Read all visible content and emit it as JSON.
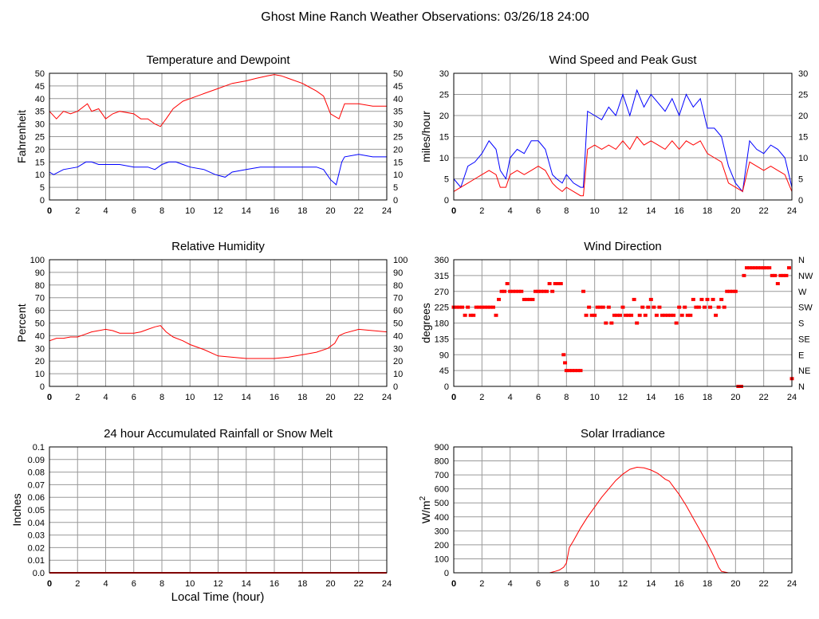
{
  "page_title": "Ghost Mine Ranch Weather Observations: 03/26/18 24:00",
  "colors": {
    "red": "#ff0000",
    "blue": "#0000ff",
    "grid": "#999999",
    "frame": "#000000"
  },
  "x_axis": {
    "xlabel": "Local Time (hour)",
    "ticks": [
      0,
      2,
      4,
      6,
      8,
      10,
      12,
      14,
      16,
      18,
      20,
      22,
      24
    ],
    "xlim": [
      0,
      24
    ]
  },
  "chart_data": [
    {
      "id": "temperature",
      "type": "line",
      "title": "Temperature and Dewpoint",
      "ylabel": "Fahrenheit",
      "ylim": [
        0,
        50
      ],
      "yticks": [
        "0",
        "5",
        "10",
        "15",
        "20",
        "25",
        "30",
        "35",
        "40",
        "45",
        "50"
      ],
      "right_ticks": [
        "0",
        "5",
        "10",
        "15",
        "20",
        "25",
        "30",
        "35",
        "40",
        "45",
        "50"
      ],
      "series": [
        {
          "color": "#ff0000",
          "x": [
            0,
            0.5,
            1,
            1.5,
            2,
            2.7,
            3,
            3.5,
            4,
            4.5,
            5,
            6,
            6.5,
            7,
            7.5,
            7.9,
            8.3,
            8.8,
            9.5,
            10,
            11,
            12,
            13,
            14,
            14.7,
            15.5,
            16,
            16.5,
            17,
            18,
            19,
            19.5,
            20,
            20.3,
            20.6,
            21,
            22,
            23,
            24
          ],
          "y": [
            35,
            32,
            35,
            34,
            35,
            38,
            35,
            36,
            32,
            34,
            35,
            34,
            32,
            32,
            30,
            29,
            32,
            36,
            39,
            40,
            42,
            44,
            46,
            47,
            48,
            49,
            49.5,
            49,
            48,
            46,
            43,
            41,
            34,
            33,
            32,
            38,
            38,
            37,
            37
          ]
        },
        {
          "color": "#0000ff",
          "x": [
            0,
            0.3,
            1,
            2,
            2.6,
            3,
            3.5,
            4,
            5,
            6,
            7,
            7.5,
            8,
            8.5,
            9,
            9.5,
            10,
            11,
            11.8,
            12.5,
            13,
            14,
            15,
            16,
            17,
            18,
            19,
            19.5,
            20,
            20.4,
            20.8,
            21,
            22,
            23,
            24
          ],
          "y": [
            11,
            10,
            12,
            13,
            15,
            15,
            14,
            14,
            14,
            13,
            13,
            12,
            14,
            15,
            15,
            14,
            13,
            12,
            10,
            9,
            11,
            12,
            13,
            13,
            13,
            13,
            13,
            12,
            8,
            6,
            15,
            17,
            18,
            17,
            17
          ]
        }
      ]
    },
    {
      "id": "wind",
      "type": "line",
      "title": "Wind Speed and Peak Gust",
      "ylabel": "miles/hour",
      "ylim": [
        0,
        30
      ],
      "yticks": [
        "0",
        "5",
        "10",
        "15",
        "20",
        "25",
        "30"
      ],
      "right_ticks": [
        "0",
        "5",
        "10",
        "15",
        "20",
        "25",
        "30"
      ],
      "series": [
        {
          "color": "#0000ff",
          "x": [
            0,
            0.5,
            1,
            1.5,
            2,
            2.5,
            3,
            3.3,
            3.7,
            4,
            4.5,
            5,
            5.5,
            6,
            6.5,
            7,
            7.3,
            7.7,
            8,
            8.5,
            9,
            9.2,
            9.5,
            10,
            10.5,
            11,
            11.5,
            12,
            12.5,
            13,
            13.5,
            14,
            14.5,
            15,
            15.5,
            16,
            16.5,
            17,
            17.5,
            18,
            18.5,
            19,
            19.5,
            20,
            20.5,
            21,
            21.5,
            22,
            22.5,
            23,
            23.5,
            24
          ],
          "y": [
            5,
            3,
            8,
            9,
            11,
            14,
            12,
            7,
            5,
            10,
            12,
            11,
            14,
            14,
            12,
            6,
            5,
            4,
            6,
            4,
            3,
            3,
            21,
            20,
            19,
            22,
            20,
            25,
            20,
            26,
            22,
            25,
            23,
            21,
            24,
            20,
            25,
            22,
            24,
            17,
            17,
            15,
            8,
            4,
            2,
            14,
            12,
            11,
            13,
            12,
            10,
            3
          ]
        },
        {
          "color": "#ff0000",
          "x": [
            0,
            0.5,
            1,
            1.5,
            2,
            2.5,
            3,
            3.3,
            3.7,
            4,
            4.5,
            5,
            5.5,
            6,
            6.5,
            7,
            7.3,
            7.7,
            8,
            8.5,
            9,
            9.2,
            9.5,
            10,
            10.5,
            11,
            11.5,
            12,
            12.5,
            13,
            13.5,
            14,
            14.5,
            15,
            15.5,
            16,
            16.5,
            17,
            17.5,
            18,
            18.5,
            19,
            19.5,
            20,
            20.5,
            21,
            21.5,
            22,
            22.5,
            23,
            23.5,
            24
          ],
          "y": [
            2,
            3,
            4,
            5,
            6,
            7,
            6,
            3,
            3,
            6,
            7,
            6,
            7,
            8,
            7,
            4,
            3,
            2,
            3,
            2,
            1,
            1,
            12,
            13,
            12,
            13,
            12,
            14,
            12,
            15,
            13,
            14,
            13,
            12,
            14,
            12,
            14,
            13,
            14,
            11,
            10,
            9,
            4,
            3,
            2,
            9,
            8,
            7,
            8,
            7,
            6,
            2
          ]
        }
      ]
    },
    {
      "id": "humidity",
      "type": "line",
      "title": "Relative Humidity",
      "ylabel": "Percent",
      "ylim": [
        0,
        100
      ],
      "yticks": [
        "0",
        "10",
        "20",
        "30",
        "40",
        "50",
        "60",
        "70",
        "80",
        "90",
        "100"
      ],
      "right_ticks": [
        "0",
        "10",
        "20",
        "30",
        "40",
        "50",
        "60",
        "70",
        "80",
        "90",
        "100"
      ],
      "series": [
        {
          "color": "#ff0000",
          "x": [
            0,
            0.5,
            1,
            1.5,
            2,
            2.5,
            3,
            3.5,
            4,
            4.5,
            5,
            6,
            6.5,
            7,
            7.5,
            7.9,
            8.3,
            8.8,
            9.5,
            10,
            11,
            12,
            13,
            14,
            15,
            16,
            17,
            18,
            19,
            19.8,
            20.3,
            20.6,
            21,
            22,
            23,
            24
          ],
          "y": [
            36,
            38,
            38,
            39,
            39,
            41,
            43,
            44,
            45,
            44,
            42,
            42,
            43,
            45,
            47,
            48,
            43,
            39,
            36,
            33,
            29,
            24,
            23,
            22,
            22,
            22,
            23,
            25,
            27,
            30,
            34,
            40,
            42,
            45,
            44,
            43
          ]
        }
      ]
    },
    {
      "id": "direction",
      "type": "scatter",
      "title": "Wind Direction",
      "ylabel": "degrees",
      "ylim": [
        0,
        360
      ],
      "yticks": [
        "0",
        "45",
        "90",
        "135",
        "180",
        "225",
        "270",
        "315",
        "360"
      ],
      "right_ticks": [
        "N",
        "NE",
        "E",
        "SE",
        "S",
        "SW",
        "W",
        "NW",
        "N"
      ],
      "series": [
        {
          "color": "#ff0000",
          "x": [
            0,
            0.2,
            0.4,
            0.6,
            0.8,
            1.0,
            1.2,
            1.4,
            1.6,
            1.8,
            2.0,
            2.2,
            2.4,
            2.6,
            2.8,
            3.0,
            3.2,
            3.4,
            3.6,
            3.8,
            4.0,
            4.2,
            4.4,
            4.6,
            4.8,
            5.0,
            5.2,
            5.4,
            5.6,
            5.8,
            6.0,
            6.2,
            6.4,
            6.6,
            6.8,
            7.0,
            7.2,
            7.4,
            7.6,
            7.8,
            7.9,
            8.0,
            8.2,
            8.4,
            8.6,
            8.8,
            9.0,
            9.2,
            9.4,
            9.6,
            9.8,
            10.0,
            10.2,
            10.4,
            10.6,
            10.8,
            11.0,
            11.2,
            11.4,
            11.6,
            11.8,
            12.0,
            12.2,
            12.4,
            12.6,
            12.8,
            13.0,
            13.2,
            13.4,
            13.6,
            13.8,
            14.0,
            14.2,
            14.4,
            14.6,
            14.8,
            15.0,
            15.2,
            15.4,
            15.6,
            15.8,
            16.0,
            16.2,
            16.4,
            16.6,
            16.8,
            17.0,
            17.2,
            17.4,
            17.6,
            17.8,
            18.0,
            18.2,
            18.4,
            18.6,
            18.8,
            19.0,
            19.2,
            19.4,
            19.6,
            19.8,
            20.0,
            20.2,
            20.4,
            20.6,
            20.8,
            21.0,
            21.2,
            21.4,
            21.6,
            21.8,
            22.0,
            22.2,
            22.4,
            22.6,
            22.8,
            23.0,
            23.2,
            23.4,
            23.6,
            23.8,
            24.0
          ],
          "y": [
            225,
            225,
            225,
            225,
            202,
            225,
            202,
            202,
            225,
            225,
            225,
            225,
            225,
            225,
            225,
            202,
            247,
            270,
            270,
            292,
            270,
            270,
            270,
            270,
            270,
            247,
            247,
            247,
            247,
            270,
            270,
            270,
            270,
            270,
            292,
            270,
            292,
            292,
            292,
            90,
            67,
            45,
            45,
            45,
            45,
            45,
            45,
            270,
            202,
            225,
            202,
            202,
            225,
            225,
            225,
            180,
            225,
            180,
            202,
            202,
            202,
            225,
            202,
            202,
            202,
            247,
            180,
            202,
            225,
            202,
            225,
            247,
            225,
            202,
            225,
            202,
            202,
            202,
            202,
            202,
            180,
            225,
            202,
            225,
            202,
            202,
            247,
            225,
            225,
            247,
            225,
            247,
            225,
            247,
            202,
            225,
            247,
            225,
            270,
            270,
            270,
            270,
            0,
            0,
            315,
            337,
            337,
            337,
            337,
            337,
            337,
            337,
            337,
            337,
            315,
            315,
            292,
            315,
            315,
            315,
            337,
            22
          ]
        }
      ]
    },
    {
      "id": "rain",
      "type": "line",
      "title": "24 hour Accumulated Rainfall or Snow Melt",
      "ylabel": "Inches",
      "ylim": [
        0,
        0.1
      ],
      "yticks": [
        "0.0",
        "0.01",
        "0.02",
        "0.03",
        "0.04",
        "0.05",
        "0.06",
        "0.07",
        "0.08",
        "0.09",
        "0.1"
      ],
      "right_ticks": [],
      "series": [
        {
          "color": "#ff0000",
          "x": [
            0,
            24
          ],
          "y": [
            0,
            0
          ]
        }
      ]
    },
    {
      "id": "solar",
      "type": "line",
      "title": "Solar Irradiance",
      "ylabel": "W/m",
      "ylabel_sup": "2",
      "ylim": [
        0,
        900
      ],
      "yticks": [
        "0",
        "100",
        "200",
        "300",
        "400",
        "500",
        "600",
        "700",
        "800",
        "900"
      ],
      "right_ticks": [],
      "series": [
        {
          "color": "#ff0000",
          "x": [
            0,
            6.8,
            7.2,
            7.5,
            7.8,
            8.0,
            8.2,
            8.5,
            9,
            9.5,
            10,
            10.5,
            11,
            11.5,
            12,
            12.5,
            13,
            13.5,
            14,
            14.5,
            15,
            15.3,
            15.7,
            16,
            16.5,
            17,
            17.5,
            18,
            18.5,
            18.8,
            19,
            19.5,
            20,
            24
          ],
          "y": [
            0,
            0,
            10,
            20,
            40,
            70,
            180,
            230,
            320,
            400,
            470,
            540,
            600,
            660,
            705,
            740,
            755,
            750,
            735,
            710,
            670,
            655,
            600,
            560,
            480,
            390,
            300,
            210,
            110,
            40,
            10,
            0,
            0,
            0
          ]
        }
      ]
    }
  ]
}
